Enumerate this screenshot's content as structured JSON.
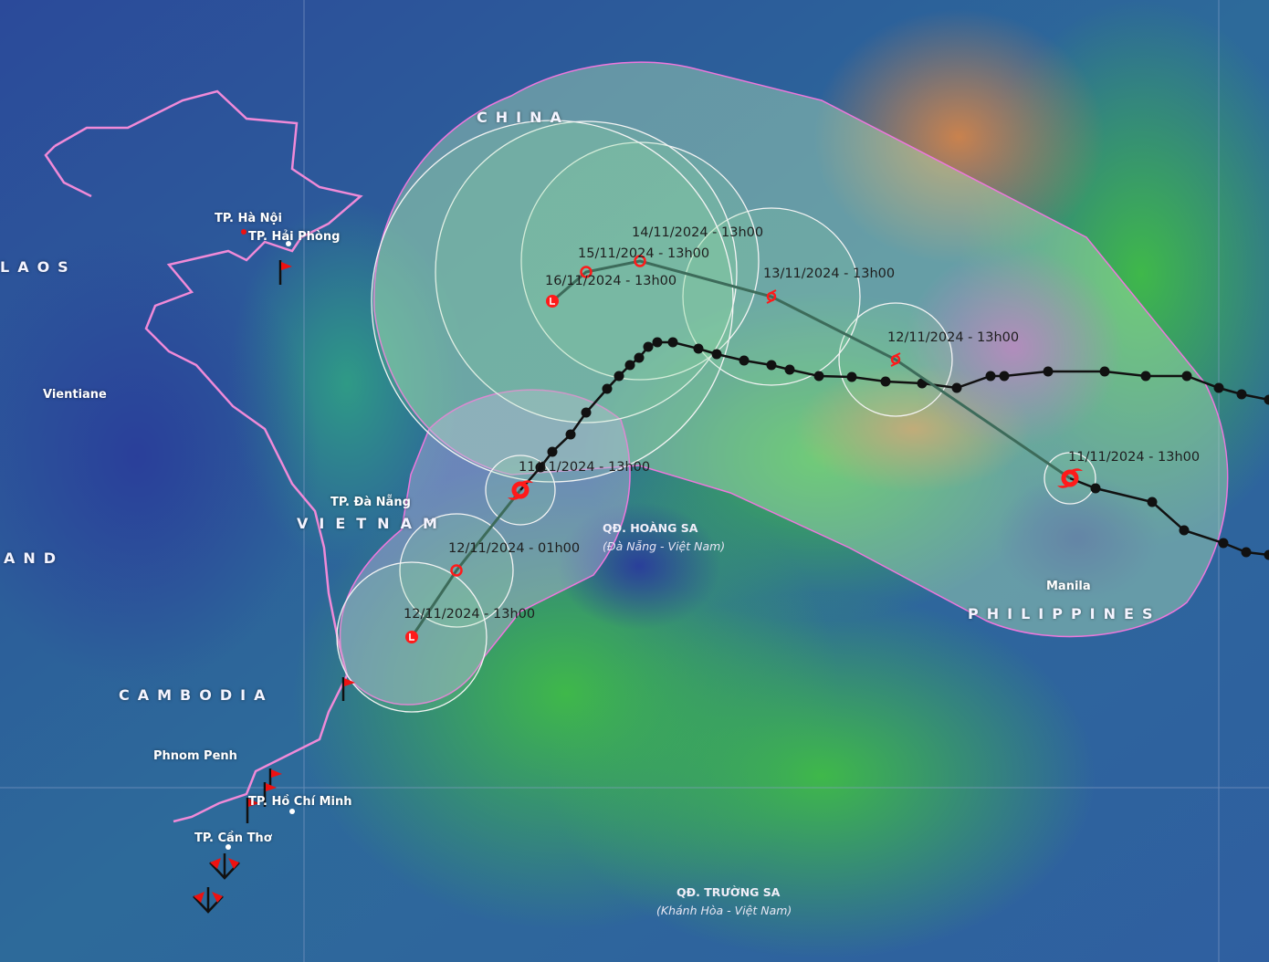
{
  "countries": {
    "laos": "LAOS",
    "china": "CHINA",
    "thailand_partial": "AND",
    "vietnam": "VIETNAM",
    "cambodia": "CAMBODIA",
    "philippines": "PHILIPPINES"
  },
  "cities": {
    "hanoi": "TP. Hà Nội",
    "haiphong": "TP. Hải Phòng",
    "vientiane": "Vientiane",
    "danang": "TP. Đà Nẵng",
    "phnompenh": "Phnom Penh",
    "hcm": "TP. Hồ Chí Minh",
    "cantho": "TP. Cần Thơ",
    "manila": "Manila"
  },
  "islands": {
    "hoangsa": "QĐ. HOÀNG SA",
    "hoangsa_sub": "(Đà Nẵng - Việt Nam)",
    "truongsa": "QĐ. TRƯỜNG SA",
    "truongsa_sub": "(Khánh Hòa - Việt Nam)"
  },
  "storm_east": {
    "forecasts": [
      {
        "time": "11/11/2024 - 13h00",
        "symbol": "typhoon-current"
      },
      {
        "time": "12/11/2024 - 13h00",
        "symbol": "storm"
      },
      {
        "time": "13/11/2024 - 13h00",
        "symbol": "storm"
      },
      {
        "time": "14/11/2024 - 13h00",
        "symbol": "depression"
      },
      {
        "time": "15/11/2024 - 13h00",
        "symbol": "depression"
      },
      {
        "time": "16/11/2024 - 13h00",
        "symbol": "low"
      }
    ]
  },
  "storm_west": {
    "forecasts": [
      {
        "time": "11/11/2024 - 13h00",
        "symbol": "typhoon-current"
      },
      {
        "time": "12/11/2024 - 01h00",
        "symbol": "depression"
      },
      {
        "time": "12/11/2024 - 13h00",
        "symbol": "low"
      }
    ]
  },
  "colors": {
    "cone_outline": "#ee77dd",
    "track_forecast": "#3d6b5a",
    "past_track": "#111111",
    "marker": "#ff1a1a",
    "risk_circle": "#90e0a0"
  }
}
